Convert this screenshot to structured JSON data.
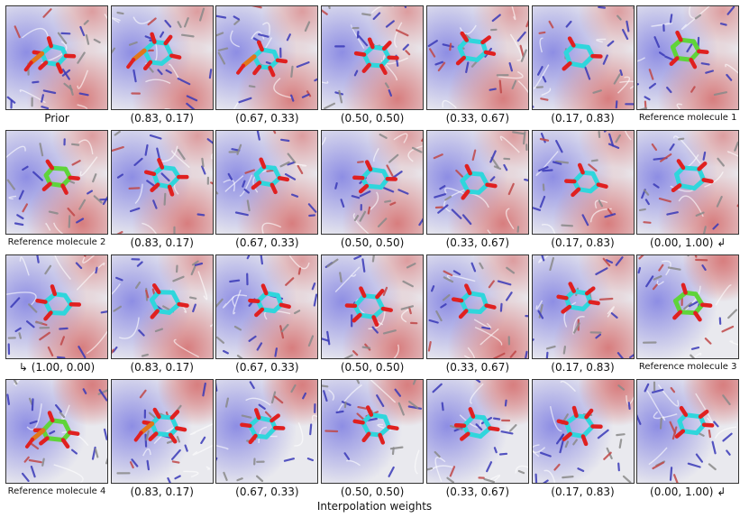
{
  "figure": {
    "xlabel": "Interpolation weights",
    "rows": [
      {
        "cells": [
          {
            "caption": "Prior",
            "mol": "mixed"
          },
          {
            "caption": "(0.83, 0.17)",
            "mol": "mixed"
          },
          {
            "caption": "(0.67, 0.33)",
            "mol": "mixed"
          },
          {
            "caption": "(0.50, 0.50)",
            "mol": "cyan"
          },
          {
            "caption": "(0.33, 0.67)",
            "mol": "cyan"
          },
          {
            "caption": "(0.17, 0.83)",
            "mol": "cyan"
          },
          {
            "caption": "Reference molecule 1",
            "mol": "green"
          }
        ]
      },
      {
        "cells": [
          {
            "caption": "Reference molecule 2",
            "mol": "green"
          },
          {
            "caption": "(0.83, 0.17)",
            "mol": "cyan"
          },
          {
            "caption": "(0.67, 0.33)",
            "mol": "cyan"
          },
          {
            "caption": "(0.50, 0.50)",
            "mol": "cyan"
          },
          {
            "caption": "(0.33, 0.67)",
            "mol": "cyan"
          },
          {
            "caption": "(0.17, 0.83)",
            "mol": "cyan"
          },
          {
            "caption": "(0.00, 1.00) ↲",
            "mol": "cyan"
          }
        ]
      },
      {
        "cells": [
          {
            "caption": "↳ (1.00, 0.00)",
            "mol": "cyan"
          },
          {
            "caption": "(0.83, 0.17)",
            "mol": "cyan"
          },
          {
            "caption": "(0.67, 0.33)",
            "mol": "cyan"
          },
          {
            "caption": "(0.50, 0.50)",
            "mol": "cyan"
          },
          {
            "caption": "(0.33, 0.67)",
            "mol": "cyan"
          },
          {
            "caption": "(0.17, 0.83)",
            "mol": "cyan"
          },
          {
            "caption": "Reference molecule 3",
            "mol": "green"
          }
        ]
      },
      {
        "cells": [
          {
            "caption": "Reference molecule 4",
            "mol": "green-orange"
          },
          {
            "caption": "(0.83, 0.17)",
            "mol": "cyan-orange"
          },
          {
            "caption": "(0.67, 0.33)",
            "mol": "cyan"
          },
          {
            "caption": "(0.50, 0.50)",
            "mol": "cyan"
          },
          {
            "caption": "(0.33, 0.67)",
            "mol": "cyan"
          },
          {
            "caption": "(0.17, 0.83)",
            "mol": "cyan"
          },
          {
            "caption": "(0.00, 1.00) ↲",
            "mol": "cyan"
          }
        ]
      }
    ]
  },
  "colors": {
    "carbon_generated": "#2fd6dc",
    "carbon_reference": "#5fd43a",
    "oxygen": "#e02020",
    "phosphorus": "#e0771a",
    "pocket_background": "#e9e9ee",
    "pocket_negative": "#d46a6a",
    "pocket_positive": "#6f6fe0"
  }
}
